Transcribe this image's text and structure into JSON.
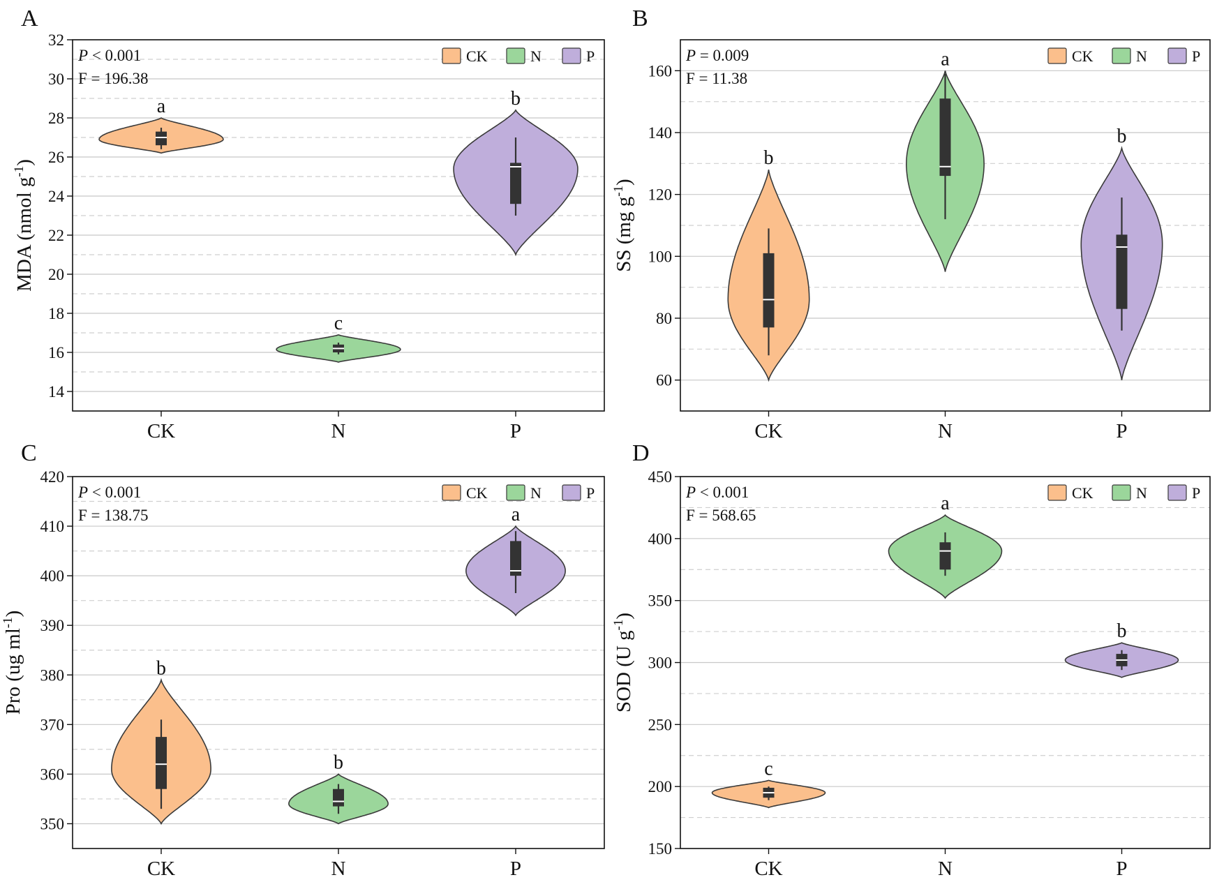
{
  "figure": {
    "type": "violin",
    "panel_count": 4
  },
  "groups": [
    "CK",
    "N",
    "P"
  ],
  "colors": {
    "CK": "#fbbf8c",
    "N": "#9bd69b",
    "P": "#bfaedb",
    "outline": "#3a3a3a",
    "box": "#333333",
    "median": "#ffffff",
    "grid_major": "#c8c8c8",
    "grid_minor": "#cfcfcf"
  },
  "legend": [
    {
      "label": "CK",
      "color": "#fbbf8c"
    },
    {
      "label": "N",
      "color": "#9bd69b"
    },
    {
      "label": "P",
      "color": "#bfaedb"
    }
  ],
  "chart_data": [
    {
      "type": "violin",
      "panel_letter": "A",
      "ylabel_main": "MDA (nmol g",
      "ylabel_sup": "-1",
      "ylabel_end": ")",
      "p_symbol": "P",
      "p_rest": "< 0.001",
      "f_text": "F = 196.38",
      "ylim": [
        13,
        32
      ],
      "major_ticks": [
        14,
        16,
        18,
        20,
        22,
        24,
        26,
        28,
        30,
        32
      ],
      "minor_grid": [
        15,
        17,
        19,
        21,
        23,
        25,
        27,
        29,
        31
      ],
      "categories": [
        "CK",
        "N",
        "P"
      ],
      "series": [
        {
          "name": "CK",
          "letter": "a",
          "min": 26.2,
          "max": 28.0,
          "mode": 26.9,
          "half_width": 0.35,
          "q1": 26.6,
          "median": 27.0,
          "q3": 27.3,
          "whisker_low": 26.4,
          "whisker_high": 27.5
        },
        {
          "name": "N",
          "letter": "c",
          "min": 15.5,
          "max": 16.9,
          "mode": 16.15,
          "half_width": 0.35,
          "q1": 16.0,
          "median": 16.2,
          "q3": 16.4,
          "whisker_low": 15.9,
          "whisker_high": 16.5
        },
        {
          "name": "P",
          "letter": "b",
          "min": 21.0,
          "max": 28.4,
          "mode": 25.4,
          "half_width": 0.35,
          "q1": 23.6,
          "median": 25.5,
          "q3": 25.7,
          "whisker_low": 23.0,
          "whisker_high": 27.0
        }
      ]
    },
    {
      "type": "violin",
      "panel_letter": "B",
      "ylabel_main": "SS (mg g",
      "ylabel_sup": "-1",
      "ylabel_end": ")",
      "p_symbol": "P",
      "p_rest": "= 0.009",
      "f_text": "F = 11.38",
      "ylim": [
        50,
        170
      ],
      "major_ticks": [
        60,
        80,
        100,
        120,
        140,
        160
      ],
      "minor_grid": [
        70,
        90,
        110,
        130,
        150
      ],
      "categories": [
        "CK",
        "N",
        "P"
      ],
      "series": [
        {
          "name": "CK",
          "letter": "b",
          "min": 60,
          "max": 128,
          "mode": 86,
          "half_width": 0.23,
          "q1": 77,
          "median": 86,
          "q3": 101,
          "whisker_low": 68,
          "whisker_high": 109
        },
        {
          "name": "N",
          "letter": "a",
          "min": 95,
          "max": 160,
          "mode": 130,
          "half_width": 0.22,
          "q1": 126,
          "median": 129,
          "q3": 151,
          "whisker_low": 112,
          "whisker_high": 159
        },
        {
          "name": "P",
          "letter": "b",
          "min": 60,
          "max": 135,
          "mode": 104,
          "half_width": 0.23,
          "q1": 83,
          "median": 103,
          "q3": 107,
          "whisker_low": 76,
          "whisker_high": 119
        }
      ]
    },
    {
      "type": "violin",
      "panel_letter": "C",
      "ylabel_main": "Pro (ug ml",
      "ylabel_sup": "-1",
      "ylabel_end": ")",
      "p_symbol": "P",
      "p_rest": "< 0.001",
      "f_text": "F = 138.75",
      "ylim": [
        345,
        420
      ],
      "major_ticks": [
        350,
        360,
        370,
        380,
        390,
        400,
        410,
        420
      ],
      "minor_grid": [
        355,
        365,
        375,
        385,
        395,
        405,
        415
      ],
      "categories": [
        "CK",
        "N",
        "P"
      ],
      "series": [
        {
          "name": "CK",
          "letter": "b",
          "min": 350,
          "max": 379,
          "mode": 361,
          "half_width": 0.28,
          "q1": 357,
          "median": 362,
          "q3": 367.5,
          "whisker_low": 353,
          "whisker_high": 371
        },
        {
          "name": "N",
          "letter": "b",
          "min": 350,
          "max": 360,
          "mode": 354,
          "half_width": 0.28,
          "q1": 353.5,
          "median": 354.5,
          "q3": 357,
          "whisker_low": 352,
          "whisker_high": 358
        },
        {
          "name": "P",
          "letter": "a",
          "min": 392,
          "max": 410,
          "mode": 401,
          "half_width": 0.28,
          "q1": 400,
          "median": 401,
          "q3": 407,
          "whisker_low": 396.5,
          "whisker_high": 409
        }
      ]
    },
    {
      "type": "violin",
      "panel_letter": "D",
      "ylabel_main": "SOD (U g",
      "ylabel_sup": "-1",
      "ylabel_end": ")",
      "p_symbol": "P",
      "p_rest": "< 0.001",
      "f_text": "F = 568.65",
      "ylim": [
        150,
        450
      ],
      "major_ticks": [
        150,
        200,
        250,
        300,
        350,
        400,
        450
      ],
      "minor_grid": [
        175,
        225,
        275,
        325,
        375,
        425
      ],
      "categories": [
        "CK",
        "N",
        "P"
      ],
      "series": [
        {
          "name": "CK",
          "letter": "c",
          "min": 183,
          "max": 205,
          "mode": 195,
          "half_width": 0.32,
          "q1": 191,
          "median": 195,
          "q3": 199,
          "whisker_low": 189,
          "whisker_high": 200
        },
        {
          "name": "N",
          "letter": "a",
          "min": 352,
          "max": 419,
          "mode": 390,
          "half_width": 0.32,
          "q1": 375,
          "median": 390,
          "q3": 397,
          "whisker_low": 370,
          "whisker_high": 405
        },
        {
          "name": "P",
          "letter": "b",
          "min": 288,
          "max": 316,
          "mode": 302,
          "half_width": 0.32,
          "q1": 297,
          "median": 302,
          "q3": 307,
          "whisker_low": 294,
          "whisker_high": 310
        }
      ]
    }
  ]
}
